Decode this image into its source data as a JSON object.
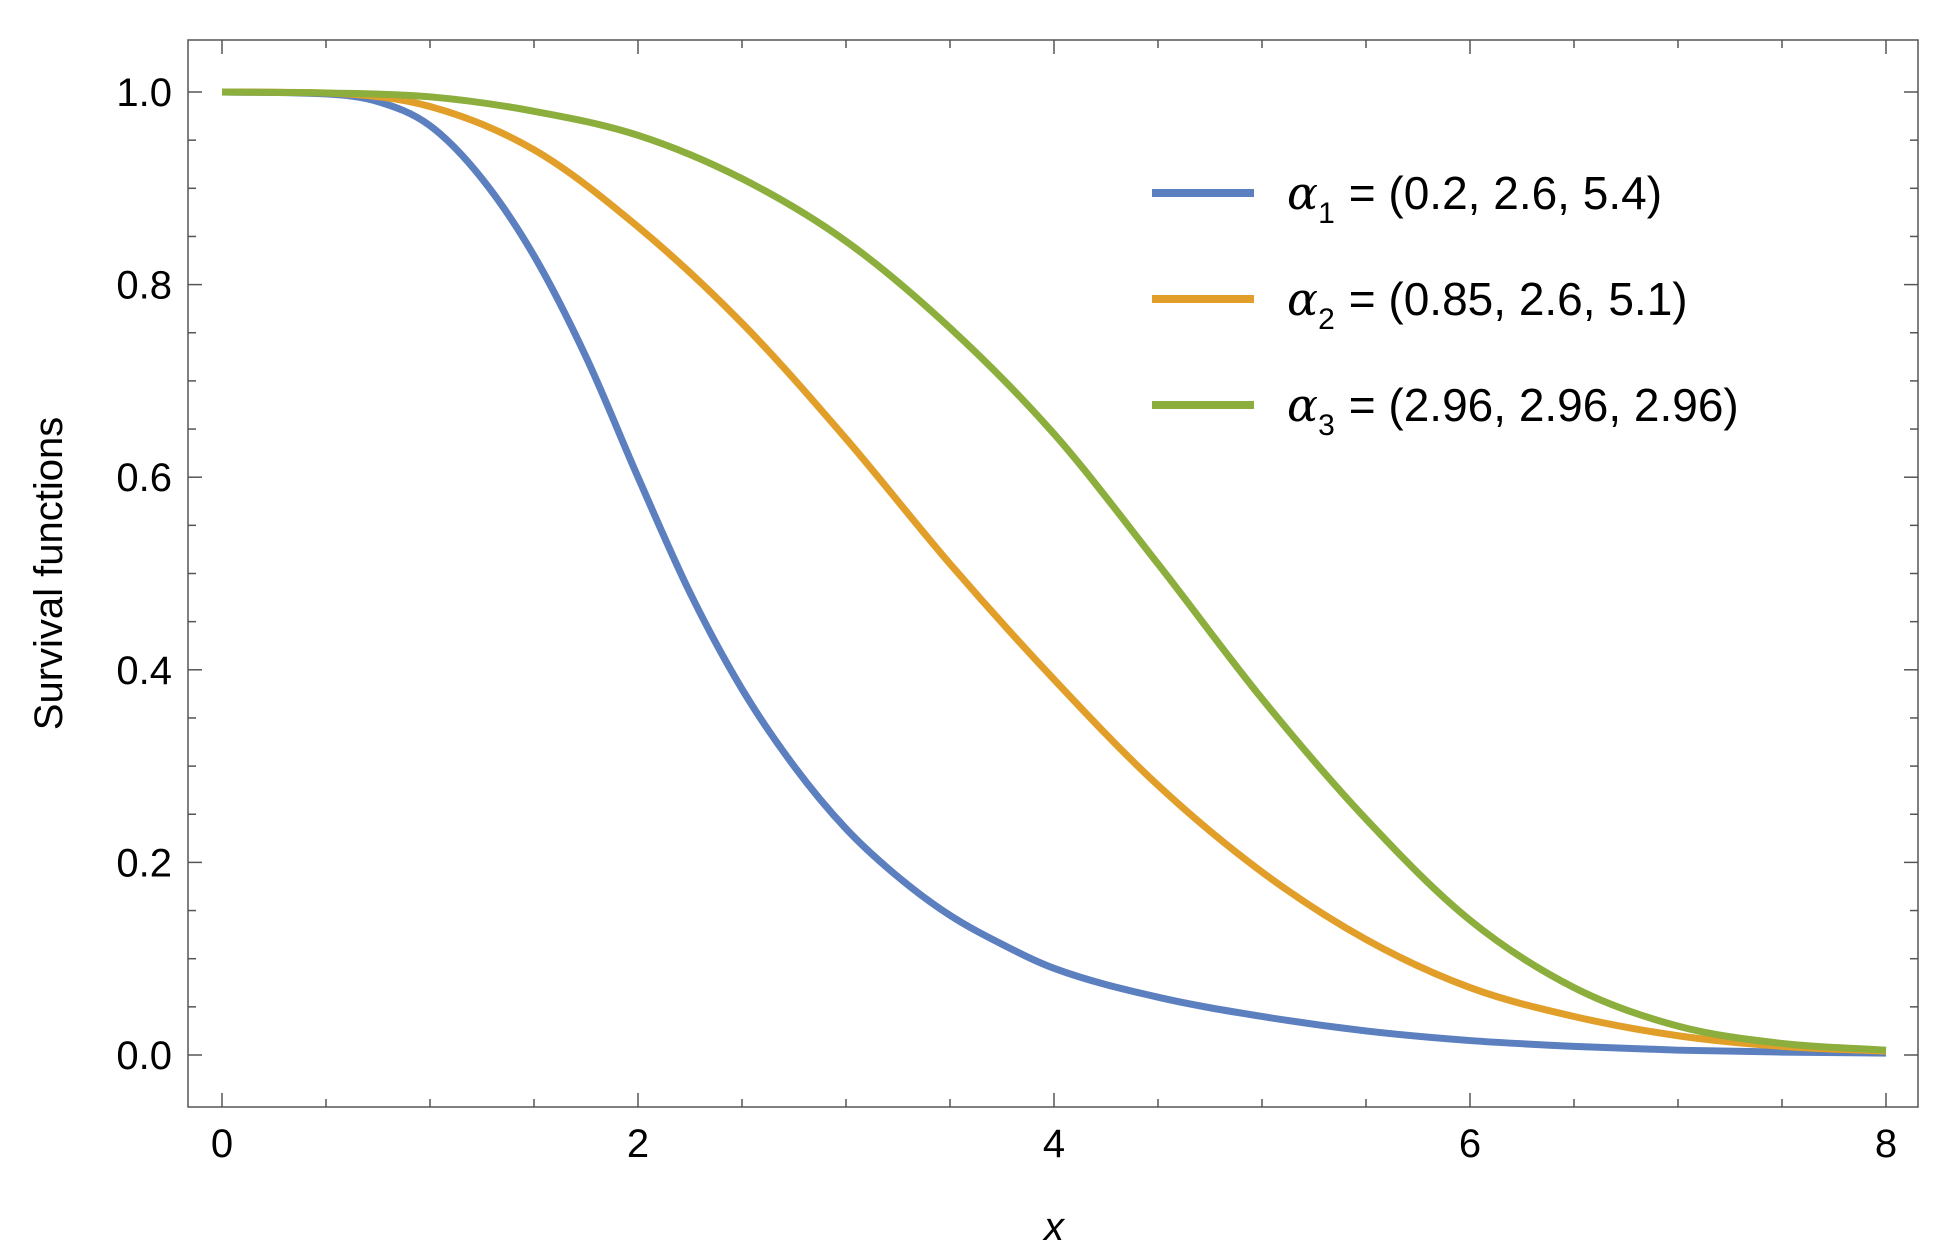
{
  "chart_data": {
    "type": "line",
    "xlabel": "x",
    "ylabel": "Survival functions",
    "xlim": [
      0,
      8
    ],
    "ylim": [
      0,
      1
    ],
    "x_ticks": [
      "0",
      "2",
      "4",
      "6",
      "8"
    ],
    "y_ticks": [
      "0.0",
      "0.2",
      "0.4",
      "0.6",
      "0.8",
      "1.0"
    ],
    "grid": false,
    "legend_position": "top-right",
    "series": [
      {
        "name": "α1 = (0.2, 2.6, 5.4)",
        "legend_symbol": "α",
        "legend_subscript": "1",
        "legend_value": "= (0.2, 2.6, 5.4)",
        "color": "#5b7fbf",
        "x": [
          0,
          0.5,
          0.75,
          1.0,
          1.25,
          1.5,
          1.75,
          2.0,
          2.25,
          2.5,
          2.75,
          3.0,
          3.25,
          3.5,
          3.75,
          4.0,
          4.5,
          5.0,
          5.5,
          6.0,
          6.5,
          7.0,
          7.5,
          8.0
        ],
        "y": [
          1.0,
          0.998,
          0.99,
          0.965,
          0.91,
          0.83,
          0.725,
          0.6,
          0.48,
          0.38,
          0.3,
          0.235,
          0.185,
          0.145,
          0.115,
          0.09,
          0.06,
          0.04,
          0.025,
          0.015,
          0.009,
          0.005,
          0.003,
          0.002
        ]
      },
      {
        "name": "α2 = (0.85, 2.6, 5.1)",
        "legend_symbol": "α",
        "legend_subscript": "2",
        "legend_value": "= (0.85, 2.6, 5.1)",
        "color": "#e19f2a",
        "x": [
          0,
          0.5,
          1.0,
          1.5,
          2.0,
          2.5,
          3.0,
          3.5,
          4.0,
          4.5,
          5.0,
          5.5,
          6.0,
          6.5,
          7.0,
          7.5,
          8.0
        ],
        "y": [
          1.0,
          0.999,
          0.985,
          0.94,
          0.86,
          0.76,
          0.64,
          0.51,
          0.39,
          0.28,
          0.19,
          0.12,
          0.07,
          0.04,
          0.02,
          0.009,
          0.004
        ]
      },
      {
        "name": "α3 = (2.96, 2.96, 2.96)",
        "legend_symbol": "α",
        "legend_subscript": "3",
        "legend_value": "= (2.96, 2.96, 2.96)",
        "color": "#8cae3c",
        "x": [
          0,
          0.5,
          1.0,
          1.5,
          2.0,
          2.5,
          3.0,
          3.5,
          4.0,
          4.5,
          5.0,
          5.5,
          6.0,
          6.5,
          7.0,
          7.5,
          8.0
        ],
        "y": [
          1.0,
          0.999,
          0.995,
          0.98,
          0.955,
          0.91,
          0.845,
          0.755,
          0.645,
          0.51,
          0.37,
          0.245,
          0.14,
          0.07,
          0.03,
          0.012,
          0.005
        ]
      }
    ]
  }
}
